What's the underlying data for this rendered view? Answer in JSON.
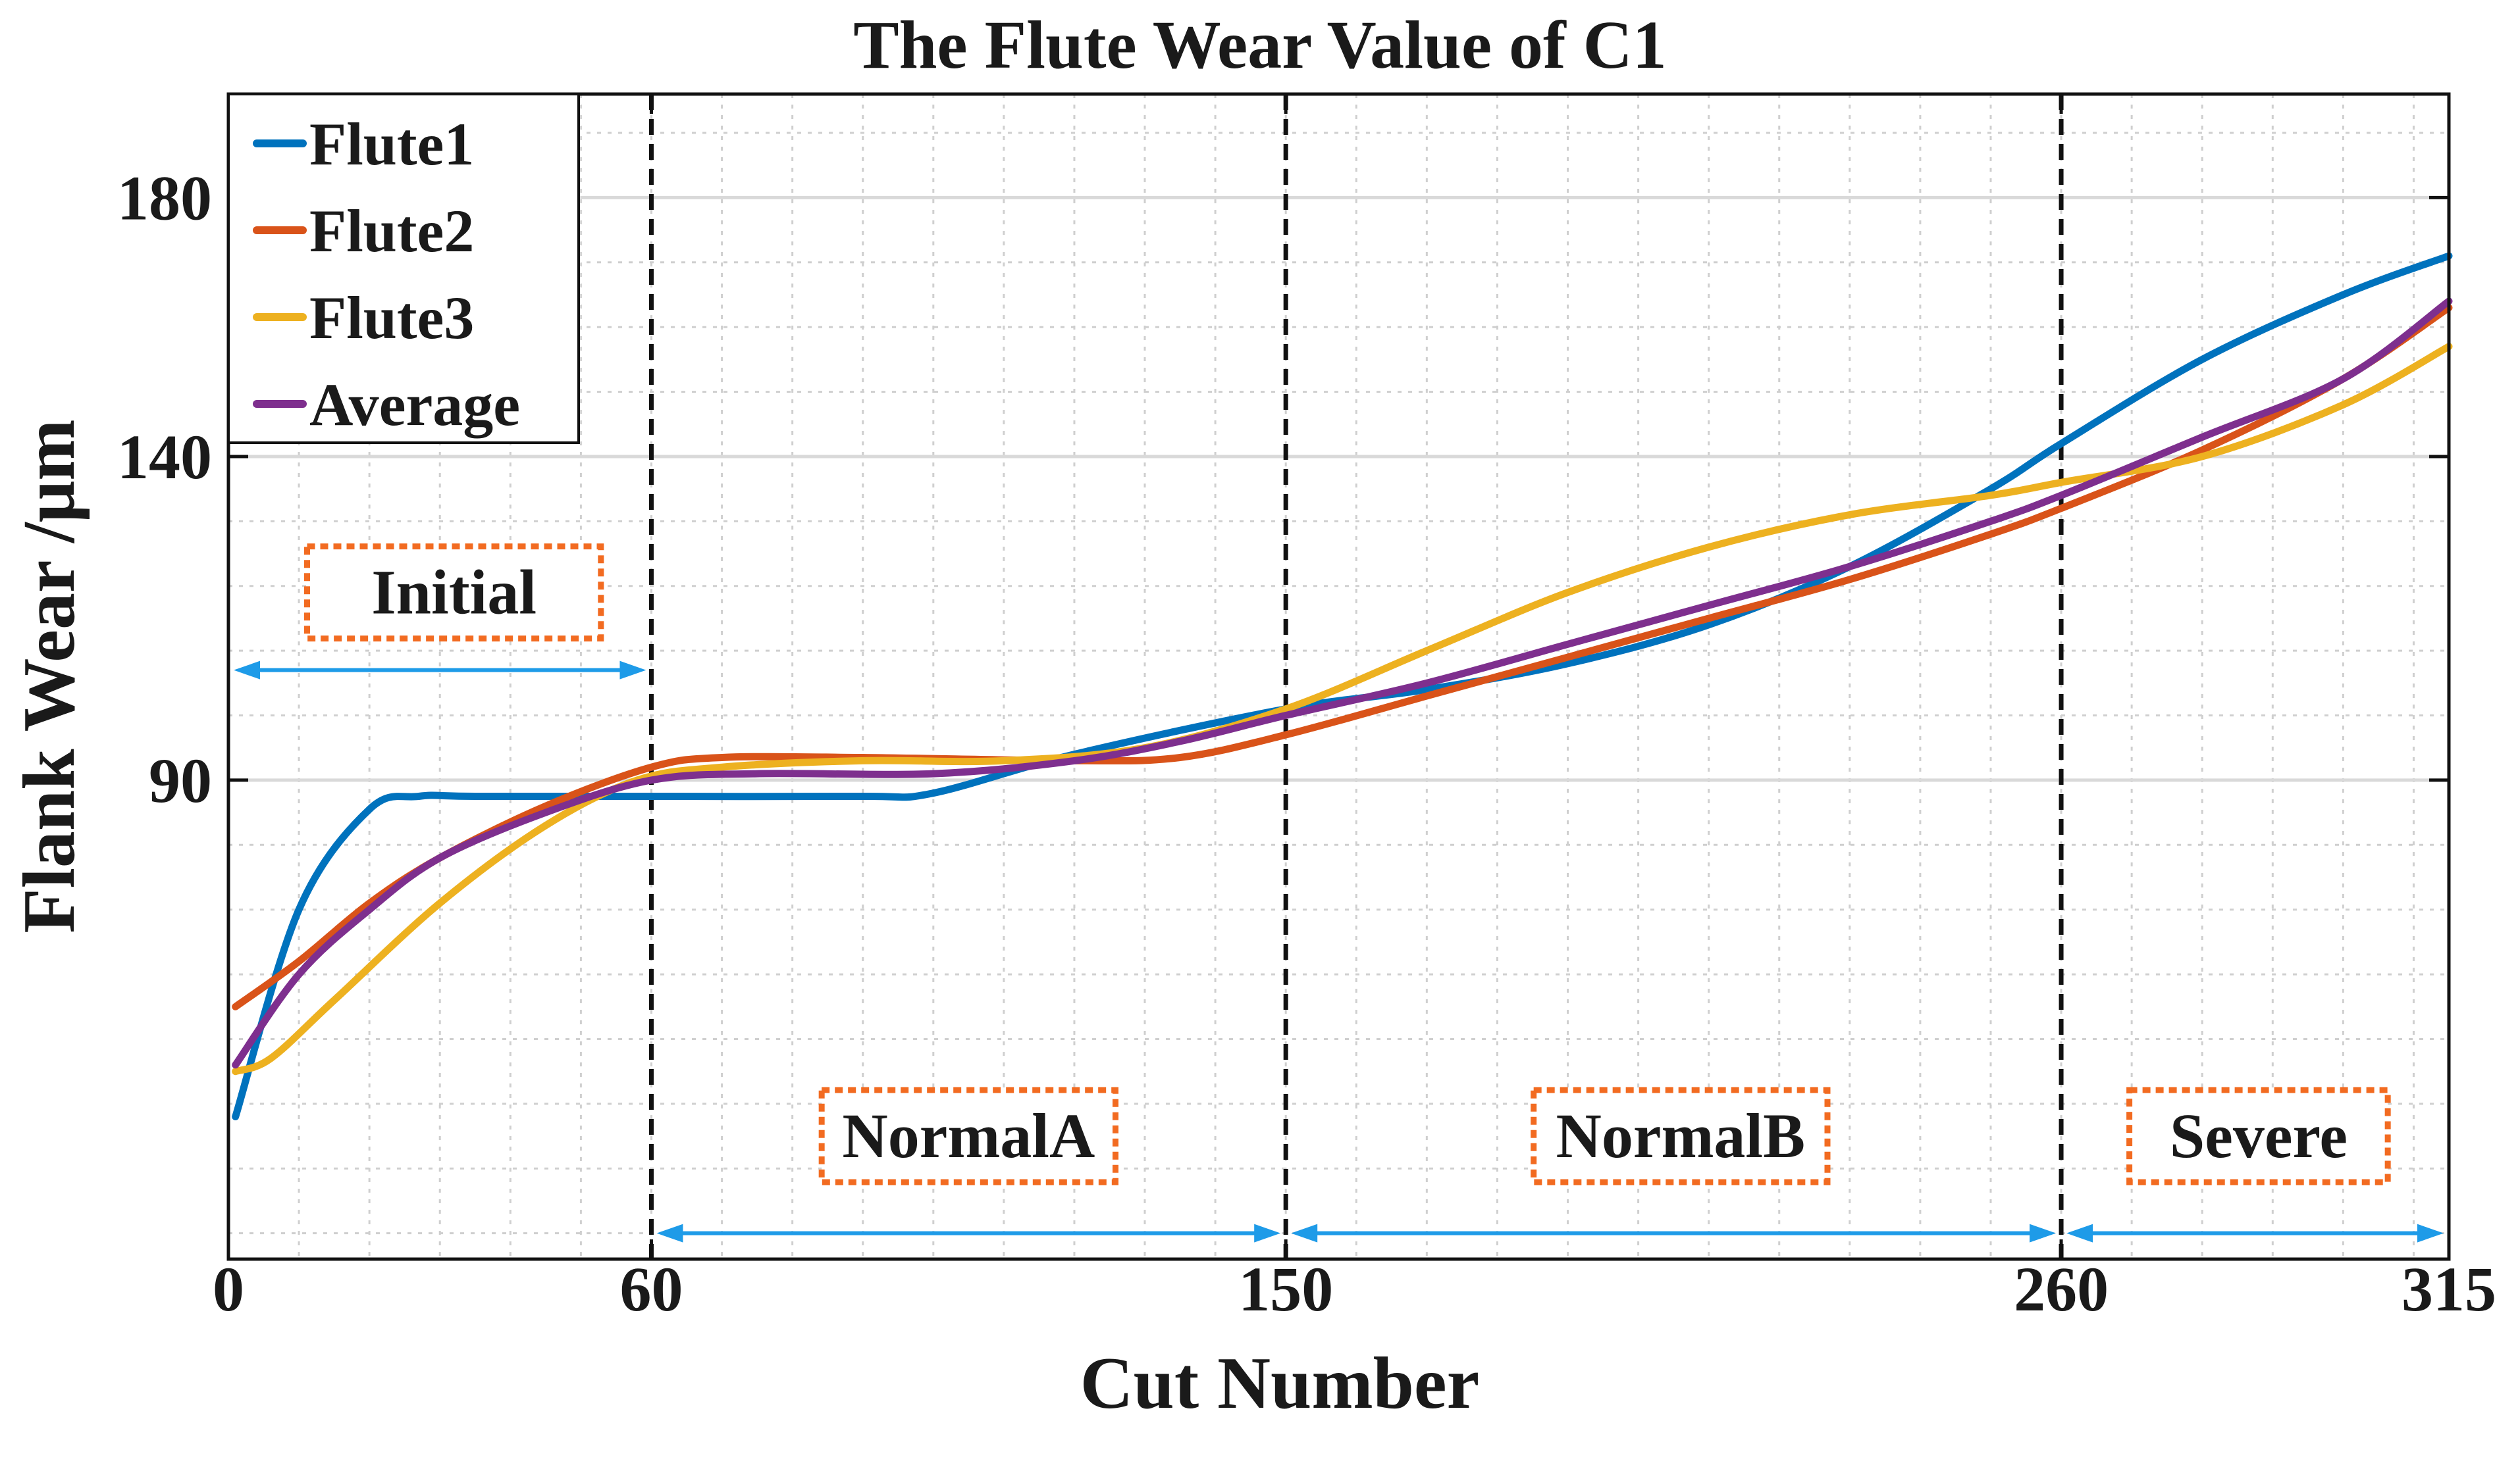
{
  "chart_data": {
    "type": "line",
    "title": "The Flute Wear Value of C1",
    "xlabel": "Cut Number",
    "ylabel": "Flank Wear /μm",
    "xlim": [
      0,
      315
    ],
    "ylim": [
      16,
      196
    ],
    "x_ticks": [
      {
        "value": 0,
        "label": "0"
      },
      {
        "value": 60,
        "label": "60"
      },
      {
        "value": 150,
        "label": "150"
      },
      {
        "value": 260,
        "label": "260"
      },
      {
        "value": 315,
        "label": "315"
      }
    ],
    "y_ticks": [
      {
        "value": 90,
        "label": "90"
      },
      {
        "value": 140,
        "label": "140"
      },
      {
        "value": 180,
        "label": "180"
      }
    ],
    "grid": true,
    "legend_position": "top-left",
    "series": [
      {
        "name": "Flute1",
        "color": "#0072BD",
        "x": [
          1,
          10,
          20,
          27,
          35,
          60,
          90,
          100,
          120,
          150,
          170,
          190,
          210,
          230,
          250,
          260,
          280,
          300,
          315
        ],
        "y": [
          38,
          70,
          85.5,
          87.5,
          87.5,
          87.5,
          87.5,
          88,
          94,
          101,
          104,
          108,
          114,
          123,
          135,
          142,
          155,
          165,
          171
        ]
      },
      {
        "name": "Flute2",
        "color": "#D95319",
        "x": [
          1,
          10,
          20,
          30,
          45,
          60,
          70,
          90,
          120,
          135,
          150,
          170,
          190,
          210,
          230,
          250,
          260,
          280,
          300,
          315
        ],
        "y": [
          55,
          62,
          71,
          78,
          86,
          92,
          93.5,
          93.5,
          93,
          93.5,
          97,
          103,
          109,
          115,
          121,
          128,
          132,
          141,
          152,
          163
        ]
      },
      {
        "name": "Flute3",
        "color": "#EDB120",
        "x": [
          1,
          6,
          15,
          30,
          45,
          58,
          70,
          90,
          110,
          130,
          150,
          170,
          190,
          210,
          230,
          250,
          260,
          280,
          300,
          315
        ],
        "y": [
          45,
          47,
          56,
          71,
          83,
          90,
          92,
          93,
          93,
          95,
          101,
          110,
          119,
          126,
          131,
          134,
          136,
          140,
          148,
          157
        ]
      },
      {
        "name": "Average",
        "color": "#7E2F8E",
        "x": [
          1,
          10,
          20,
          30,
          45,
          60,
          75,
          100,
          120,
          135,
          150,
          170,
          190,
          210,
          230,
          250,
          260,
          280,
          300,
          315
        ],
        "y": [
          46,
          60,
          70,
          78,
          85,
          90,
          91,
          91,
          93,
          96,
          100,
          105,
          111,
          117,
          123,
          130,
          134,
          143,
          152,
          164
        ]
      }
    ],
    "phase_boundaries": [
      60,
      150,
      260
    ],
    "annotations": [
      {
        "label": "Initial",
        "x_range": [
          0,
          60
        ],
        "label_x": 32,
        "label_y": 119,
        "arrow_y": 107
      },
      {
        "label": "NormalA",
        "x_range": [
          60,
          150
        ],
        "label_x": 105,
        "label_y": 35,
        "arrow_y": 20
      },
      {
        "label": "NormalB",
        "x_range": [
          150,
          260
        ],
        "label_x": 206,
        "label_y": 35,
        "arrow_y": 20
      },
      {
        "label": "Severe",
        "x_range": [
          260,
          315
        ],
        "label_x": 288,
        "label_y": 35,
        "arrow_y": 20
      }
    ],
    "colors": {
      "grid": "#cfcfcf",
      "phase_line": "#111111",
      "annotation_box": "#F26B21",
      "annotation_arrow": "#1E9BE8"
    }
  }
}
